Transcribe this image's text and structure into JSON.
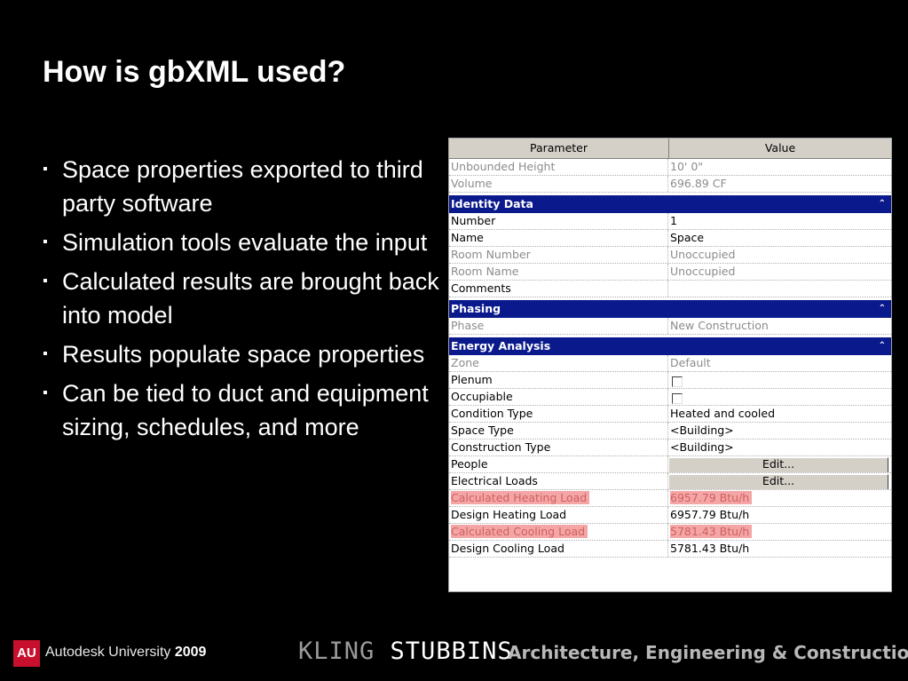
{
  "slide": {
    "title": "How is gbXML used?",
    "bullets": [
      "Space properties exported to third party software",
      "Simulation tools evaluate the input",
      "Calculated results are brought back into model",
      "Results populate space properties",
      "Can be tied to duct and equipment sizing, schedules, and more"
    ],
    "bullet_marker": "▪"
  },
  "properties_table": {
    "header": {
      "parameter": "Parameter",
      "value": "Value"
    },
    "top_rows": [
      {
        "param": "Unbounded Height",
        "value": "10'  0\""
      },
      {
        "param": "Volume",
        "value": "696.89 CF"
      }
    ],
    "groups": {
      "identity": {
        "title": "Identity Data",
        "chevron": "⌃",
        "rows": [
          {
            "param": "Number",
            "value": "1"
          },
          {
            "param": "Name",
            "value": "Space"
          },
          {
            "param": "Room Number",
            "value": "Unoccupied"
          },
          {
            "param": "Room Name",
            "value": "Unoccupied"
          },
          {
            "param": "Comments",
            "value": ""
          }
        ]
      },
      "phasing": {
        "title": "Phasing",
        "chevron": "⌃",
        "rows": [
          {
            "param": "Phase",
            "value": "New Construction"
          }
        ]
      },
      "energy": {
        "title": "Energy Analysis",
        "chevron": "⌃",
        "rows": [
          {
            "param": "Zone",
            "value": "Default"
          },
          {
            "param": "Plenum",
            "value": ""
          },
          {
            "param": "Occupiable",
            "value": ""
          },
          {
            "param": "Condition Type",
            "value": "Heated and cooled"
          },
          {
            "param": "Space Type",
            "value": "<Building>"
          },
          {
            "param": "Construction Type",
            "value": "<Building>"
          },
          {
            "param": "People",
            "value": "Edit..."
          },
          {
            "param": "Electrical Loads",
            "value": "Edit..."
          },
          {
            "param": "Calculated Heating Load",
            "value": "6957.79 Btu/h"
          },
          {
            "param": "Design Heating Load",
            "value": "6957.79 Btu/h"
          },
          {
            "param": "Calculated Cooling Load",
            "value": "5781.43 Btu/h"
          },
          {
            "param": "Design Cooling Load",
            "value": "5781.43 Btu/h"
          }
        ]
      }
    },
    "colors": {
      "group_header_bg": "#0a1a8c",
      "highlight_bg": "#f4a6a6",
      "greyed_text": "#8c8c8c"
    }
  },
  "footer": {
    "au_logo": "AU",
    "au_name": "Autodesk University",
    "au_year": "2009",
    "kling": "KLING",
    "stubbins": "STUBBINS",
    "tagline": "Architecture, Engineering & Construction",
    "colors": {
      "au_red": "#c8102e"
    }
  }
}
